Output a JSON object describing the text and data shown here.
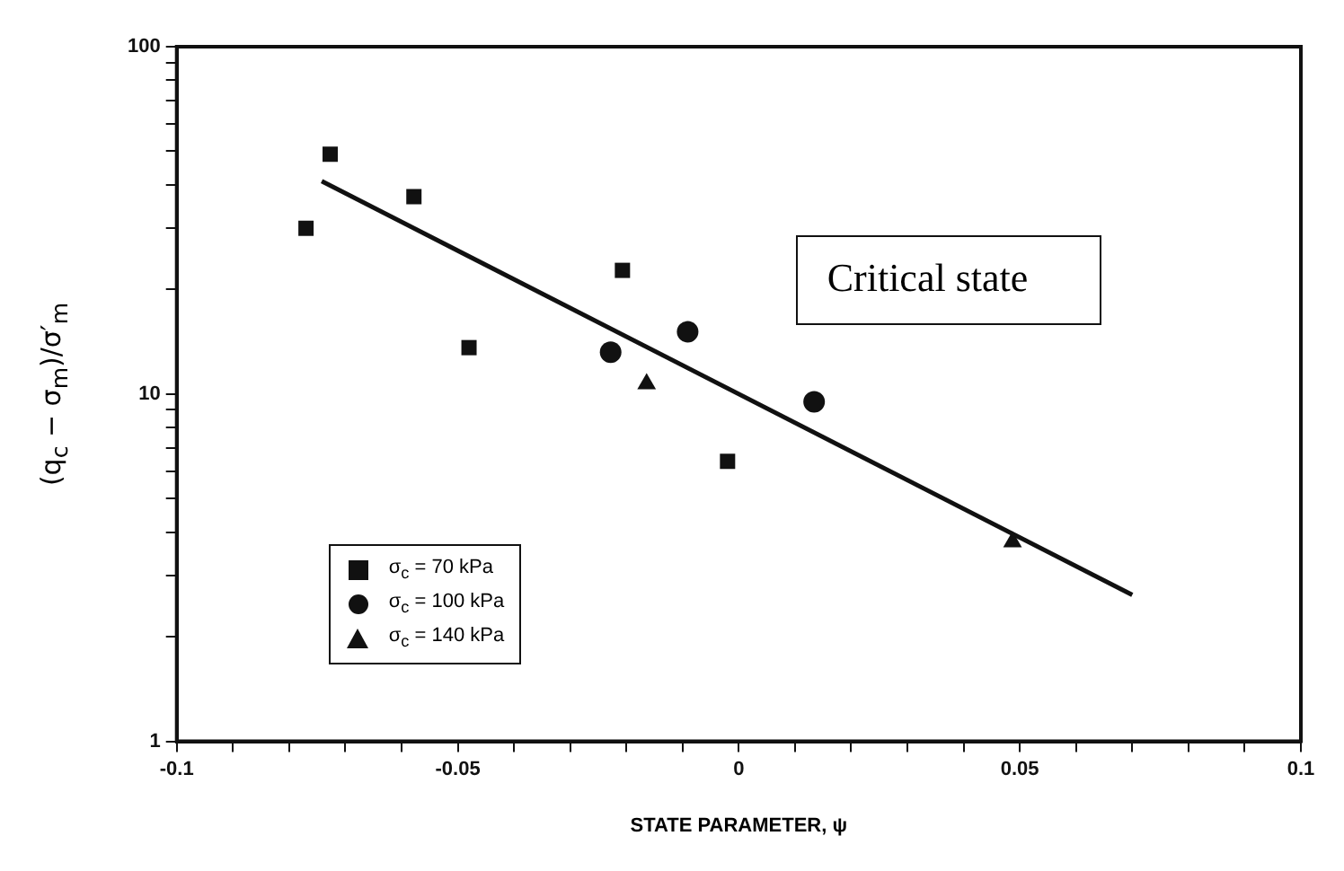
{
  "chart_data": {
    "type": "scatter",
    "xlabel": "STATE PARAMETER, ψ",
    "ylabel": "(q$_{c}$ − σ$_{m}$)/σ′$_{m}$",
    "log": "y",
    "grid": false,
    "legend": "bottom left",
    "xlim": [
      -0.1,
      0.1
    ],
    "ylim": [
      1,
      100
    ],
    "xticks": [
      -0.1,
      {
        "value": -0.09,
        "label": null
      },
      {
        "value": -0.08,
        "label": null
      },
      {
        "value": -0.07,
        "label": null
      },
      {
        "value": -0.06,
        "label": null
      },
      -0.05,
      {
        "value": -0.04,
        "label": null
      },
      {
        "value": -0.03,
        "label": null
      },
      {
        "value": -0.02,
        "label": null
      },
      {
        "value": -0.01,
        "label": null
      },
      0,
      {
        "value": 0.01,
        "label": null
      },
      {
        "value": 0.02,
        "label": null
      },
      {
        "value": 0.03,
        "label": null
      },
      {
        "value": 0.04,
        "label": null
      },
      0.05,
      {
        "value": 0.06,
        "label": null
      },
      {
        "value": 0.07,
        "label": null
      },
      {
        "value": 0.08,
        "label": null
      },
      {
        "value": 0.09,
        "label": null
      },
      0.1
    ],
    "yticks": [
      1,
      {
        "value": 2,
        "label": null
      },
      {
        "value": 3,
        "label": null
      },
      {
        "value": 4,
        "label": null
      },
      {
        "value": 5,
        "label": null
      },
      {
        "value": 6,
        "label": null
      },
      {
        "value": 7,
        "label": null
      },
      {
        "value": 8,
        "label": null
      },
      {
        "value": 9,
        "label": null
      },
      10,
      {
        "value": 20,
        "label": null
      },
      {
        "value": 30,
        "label": null
      },
      {
        "value": 40,
        "label": null
      },
      {
        "value": 50,
        "label": null
      },
      {
        "value": 60,
        "label": null
      },
      {
        "value": 70,
        "label": null
      },
      {
        "value": 80,
        "label": null
      },
      {
        "value": 90,
        "label": null
      },
      100
    ],
    "annotations": [
      "Critical state"
    ],
    "series": [
      {
        "name": "σ$_{c}$ = 70 kPa",
        "color": "#111111",
        "marker": "square",
        "x": [
          -0.077,
          -0.0727,
          -0.0578,
          -0.048,
          -0.0207,
          -0.002
        ],
        "values": [
          30,
          49,
          37,
          13.6,
          22.7,
          6.4
        ]
      },
      {
        "name": "σ$_{c}$ = 100 kPa",
        "color": "#111111",
        "marker": "circle",
        "x": [
          -0.0228,
          -0.0091,
          0.0134
        ],
        "values": [
          13.2,
          15.1,
          9.5
        ]
      },
      {
        "name": "σ$_{c}$ = 140 kPa",
        "color": "#111111",
        "marker": "triangle",
        "x": [
          -0.0164,
          0.0487
        ],
        "values": [
          10.7,
          3.75
        ]
      },
      {
        "type": "line",
        "color": "#111111",
        "marker": "none",
        "x": [
          -0.0742,
          0.07
        ],
        "values": [
          41,
          2.64
        ]
      }
    ]
  }
}
